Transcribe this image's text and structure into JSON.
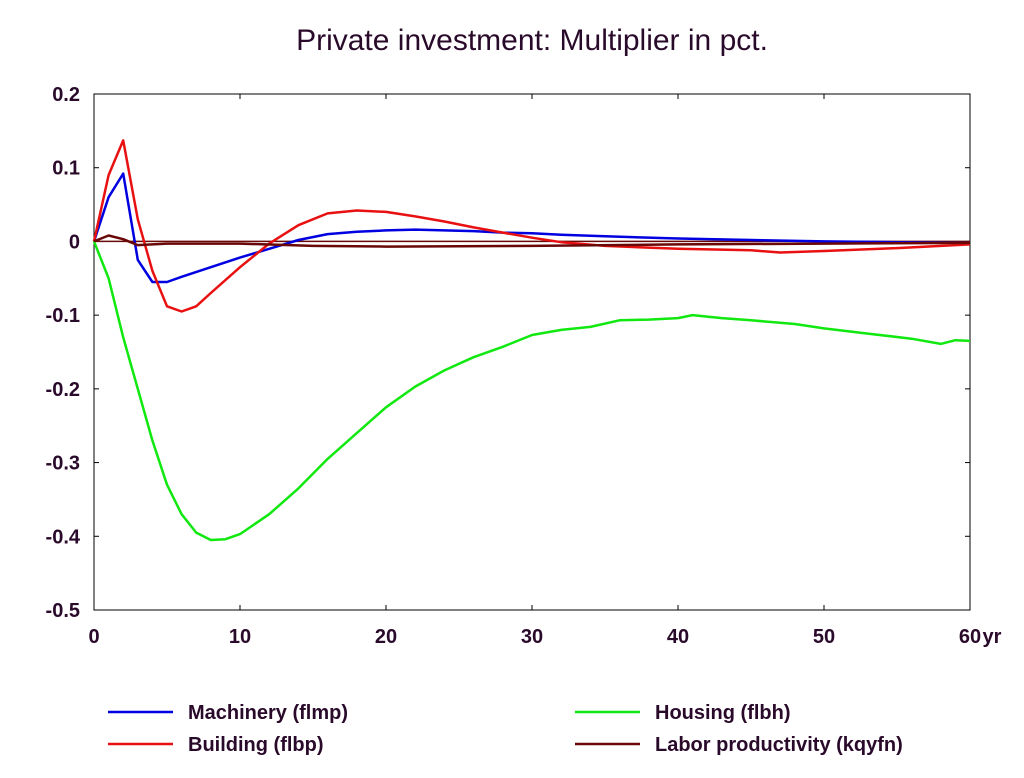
{
  "chart_data": {
    "type": "line",
    "title": "Private investment: Multiplier in pct.",
    "x_unit": "yr",
    "xlim": [
      0,
      60
    ],
    "ylim": [
      -0.5,
      0.2
    ],
    "x_ticks": [
      "0",
      "10",
      "20",
      "30",
      "40",
      "50",
      "60"
    ],
    "y_ticks": [
      "0.2",
      "0.1",
      "0",
      "-0.1",
      "-0.2",
      "-0.3",
      "-0.4",
      "-0.5"
    ],
    "grid": false,
    "legend_placement": "bottom",
    "series": [
      {
        "name": "Machinery (flmp)",
        "color": "#0000e0",
        "points": [
          [
            0,
            0
          ],
          [
            1,
            0.06
          ],
          [
            2,
            0.092
          ],
          [
            3,
            -0.025
          ],
          [
            4,
            -0.055
          ],
          [
            5,
            -0.055
          ],
          [
            6,
            -0.048
          ],
          [
            8,
            -0.035
          ],
          [
            10,
            -0.022
          ],
          [
            12,
            -0.01
          ],
          [
            14,
            0.002
          ],
          [
            16,
            0.01
          ],
          [
            18,
            0.013
          ],
          [
            20,
            0.015
          ],
          [
            22,
            0.016
          ],
          [
            24,
            0.015
          ],
          [
            26,
            0.014
          ],
          [
            28,
            0.012
          ],
          [
            30,
            0.011
          ],
          [
            32,
            0.009
          ],
          [
            35,
            0.007
          ],
          [
            40,
            0.004
          ],
          [
            45,
            0.002
          ],
          [
            50,
            0
          ],
          [
            55,
            -0.001
          ],
          [
            60,
            -0.002
          ]
        ]
      },
      {
        "name": "Building (flbp)",
        "color": "#e81010",
        "points": [
          [
            0,
            0
          ],
          [
            1,
            0.09
          ],
          [
            2,
            0.137
          ],
          [
            3,
            0.03
          ],
          [
            4,
            -0.04
          ],
          [
            5,
            -0.088
          ],
          [
            6,
            -0.095
          ],
          [
            7,
            -0.088
          ],
          [
            8,
            -0.07
          ],
          [
            10,
            -0.035
          ],
          [
            12,
            -0.003
          ],
          [
            14,
            0.022
          ],
          [
            16,
            0.038
          ],
          [
            18,
            0.042
          ],
          [
            20,
            0.04
          ],
          [
            22,
            0.034
          ],
          [
            24,
            0.027
          ],
          [
            26,
            0.019
          ],
          [
            28,
            0.012
          ],
          [
            30,
            0.005
          ],
          [
            32,
            -0.001
          ],
          [
            35,
            -0.006
          ],
          [
            40,
            -0.01
          ],
          [
            45,
            -0.012
          ],
          [
            47,
            -0.015
          ],
          [
            50,
            -0.013
          ],
          [
            55,
            -0.009
          ],
          [
            60,
            -0.004
          ]
        ]
      },
      {
        "name": "Housing (flbh)",
        "color": "#10e810",
        "points": [
          [
            0,
            0
          ],
          [
            1,
            -0.05
          ],
          [
            2,
            -0.13
          ],
          [
            3,
            -0.2
          ],
          [
            4,
            -0.27
          ],
          [
            5,
            -0.33
          ],
          [
            6,
            -0.37
          ],
          [
            7,
            -0.395
          ],
          [
            8,
            -0.405
          ],
          [
            9,
            -0.404
          ],
          [
            10,
            -0.397
          ],
          [
            12,
            -0.37
          ],
          [
            14,
            -0.335
          ],
          [
            16,
            -0.295
          ],
          [
            18,
            -0.26
          ],
          [
            20,
            -0.225
          ],
          [
            22,
            -0.197
          ],
          [
            24,
            -0.175
          ],
          [
            26,
            -0.157
          ],
          [
            28,
            -0.143
          ],
          [
            30,
            -0.127
          ],
          [
            32,
            -0.12
          ],
          [
            34,
            -0.116
          ],
          [
            36,
            -0.107
          ],
          [
            38,
            -0.106
          ],
          [
            40,
            -0.104
          ],
          [
            41,
            -0.1
          ],
          [
            43,
            -0.104
          ],
          [
            45,
            -0.107
          ],
          [
            48,
            -0.112
          ],
          [
            50,
            -0.118
          ],
          [
            53,
            -0.125
          ],
          [
            56,
            -0.132
          ],
          [
            58,
            -0.139
          ],
          [
            59,
            -0.134
          ],
          [
            60,
            -0.135
          ]
        ]
      },
      {
        "name": "Labor productivity (kqyfn)",
        "color": "#6a0808",
        "points": [
          [
            0,
            0
          ],
          [
            1,
            0.008
          ],
          [
            2,
            0.003
          ],
          [
            3,
            -0.005
          ],
          [
            5,
            -0.003
          ],
          [
            10,
            -0.003
          ],
          [
            15,
            -0.006
          ],
          [
            20,
            -0.007
          ],
          [
            30,
            -0.006
          ],
          [
            40,
            -0.004
          ],
          [
            50,
            -0.003
          ],
          [
            60,
            -0.002
          ]
        ]
      }
    ]
  }
}
